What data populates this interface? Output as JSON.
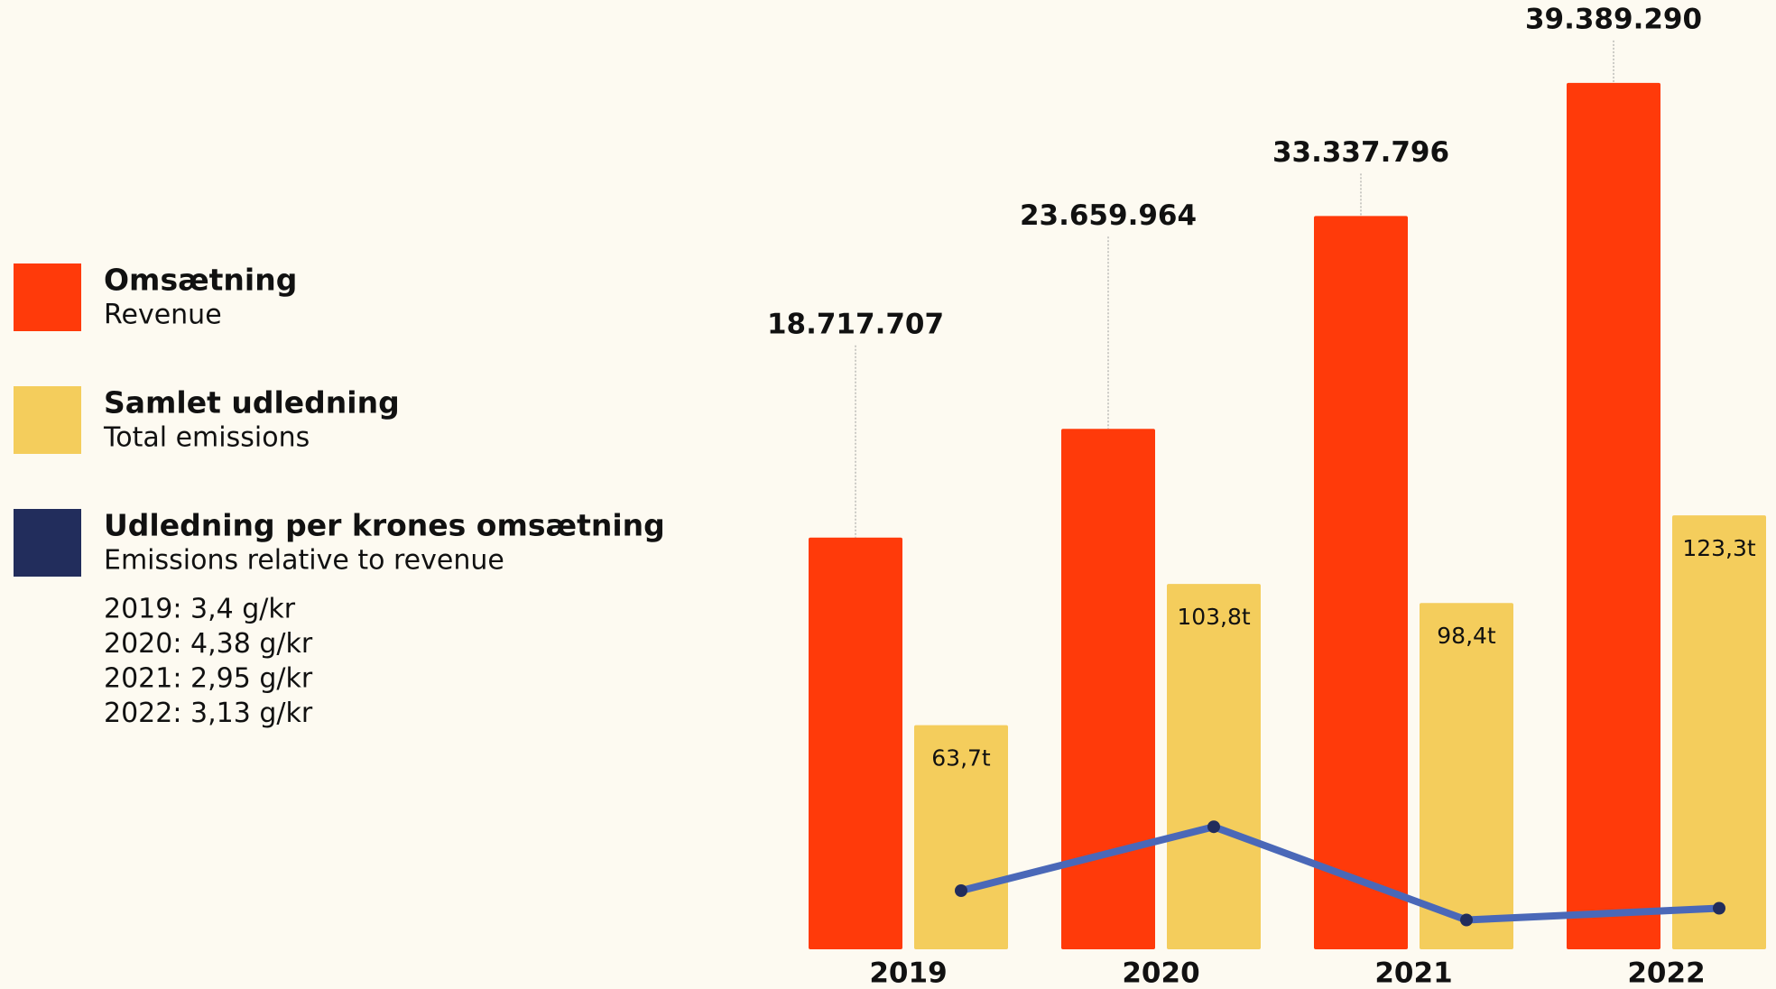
{
  "chart_data": {
    "type": "bar",
    "categories": [
      "2019",
      "2020",
      "2021",
      "2022"
    ],
    "ylim": [
      0,
      40000000
    ],
    "y2lim": [
      0,
      250
    ],
    "y3lim": [
      2.5,
      16
    ],
    "series": [
      {
        "name": "Omsætning",
        "subtitle": "Revenue",
        "color": "#ff3a0a",
        "values": [
          18717707,
          23659964,
          33337796,
          39389290
        ],
        "value_labels": [
          "18.717.707",
          "23.659.964",
          "33.337.796",
          "39.389.290"
        ]
      },
      {
        "name": "Samlet udledning",
        "subtitle": "Total emissions",
        "color": "#f4cd5c",
        "axis": "y2",
        "values": [
          63.7,
          103.8,
          98.4,
          123.3
        ],
        "value_labels": [
          "63,7t",
          "103,8t",
          "98,4t",
          "123,3t"
        ]
      },
      {
        "name": "Udledning per krones omsætning",
        "subtitle": "Emissions relative to revenue",
        "type": "line",
        "color": "#4a68b8",
        "marker_color": "#222d5c",
        "axis": "y3",
        "values": [
          3.4,
          4.38,
          2.95,
          3.13
        ],
        "value_labels": [
          "2019: 3,4 g/kr",
          "2020: 4,38 g/kr",
          "2021: 2,95 g/kr",
          "2022: 3,13 g/kr"
        ]
      }
    ]
  }
}
